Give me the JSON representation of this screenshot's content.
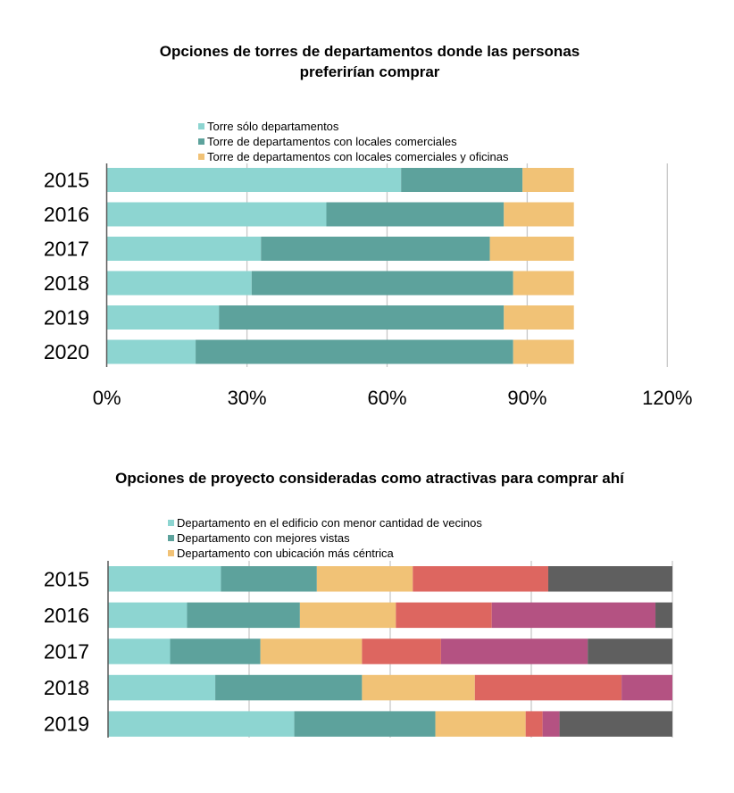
{
  "chart_data": [
    {
      "type": "bar",
      "orientation": "horizontal",
      "stacked": true,
      "title": "Opciones de torres de departamentos donde las personas preferirían comprar",
      "title_lines": [
        "Opciones de torres de departamentos donde las personas",
        "preferirían comprar"
      ],
      "xlabel": "",
      "ylabel": "",
      "categories": [
        "2015",
        "2016",
        "2017",
        "2018",
        "2019",
        "2020"
      ],
      "series": [
        {
          "name": "Torre sólo departamentos",
          "color": "#8dd5d1",
          "values": [
            63,
            47,
            33,
            31,
            24,
            19
          ]
        },
        {
          "name": "Torre de departamentos con locales comerciales",
          "color": "#5da29c",
          "values": [
            26,
            38,
            49,
            56,
            61,
            68
          ]
        },
        {
          "name": "Torre de departamentos con locales comerciales y oficinas",
          "color": "#f1c276",
          "values": [
            11,
            15,
            18,
            13,
            15,
            13
          ]
        }
      ],
      "xlim": [
        0,
        120
      ],
      "x_ticks": [
        0,
        30,
        60,
        90,
        120
      ],
      "x_tick_labels": [
        "0%",
        "30%",
        "60%",
        "90%",
        "120%"
      ],
      "grid": true,
      "legend_position": "top"
    },
    {
      "type": "bar",
      "orientation": "horizontal",
      "stacked": true,
      "title": "Opciones de proyecto consideradas como atractivas para comprar ahí",
      "title_lines": [
        "Opciones de proyecto consideradas como atractivas para comprar ahí"
      ],
      "xlabel": "",
      "ylabel": "",
      "categories": [
        "2015",
        "2016",
        "2017",
        "2018",
        "2019"
      ],
      "series": [
        {
          "name": "Departamento en el edificio con menor cantidad de vecinos",
          "color": "#8dd5d1",
          "values": [
            20,
            14,
            11,
            19,
            33
          ]
        },
        {
          "name": "Departamento con mejores vistas",
          "color": "#5da29c",
          "values": [
            17,
            20,
            16,
            26,
            25
          ]
        },
        {
          "name": "Departamento con ubicación más céntrica",
          "color": "#f1c276",
          "values": [
            17,
            17,
            18,
            20,
            16
          ]
        },
        {
          "name": "",
          "color": "#dd6660",
          "values": [
            24,
            17,
            14,
            26,
            3
          ]
        },
        {
          "name": "",
          "color": "#b45282",
          "values": [
            0,
            29,
            26,
            9,
            3
          ]
        },
        {
          "name": "",
          "color": "#5f5f5f",
          "values": [
            22,
            3,
            15,
            0,
            20
          ]
        }
      ],
      "xlim": [
        0,
        100
      ],
      "x_ticks": [
        0,
        25,
        50,
        75,
        100
      ],
      "x_tick_labels": [],
      "grid": true,
      "legend_position": "top",
      "legend_visible_entries": 3
    }
  ]
}
